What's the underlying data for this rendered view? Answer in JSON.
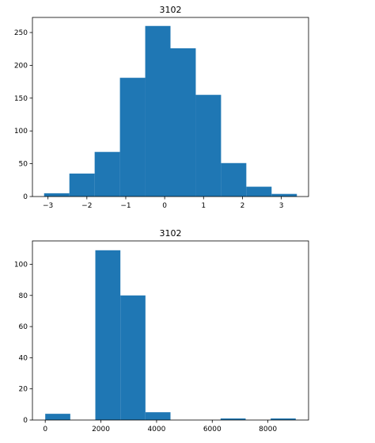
{
  "chart_data": [
    {
      "type": "bar",
      "title": "3102",
      "xlabel": "",
      "ylabel": "",
      "bin_edges": [
        -3.1,
        -2.45,
        -1.8,
        -1.15,
        -0.5,
        0.15,
        0.8,
        1.45,
        2.1,
        2.75,
        3.4
      ],
      "values": [
        5,
        35,
        68,
        181,
        260,
        226,
        155,
        51,
        15,
        4
      ],
      "xlim": [
        -3.4,
        3.7
      ],
      "ylim": [
        0,
        273
      ],
      "xticks": [
        -3,
        -2,
        -1,
        0,
        1,
        2,
        3
      ],
      "xtick_labels": [
        "−3",
        "−2",
        "−1",
        "0",
        "1",
        "2",
        "3"
      ],
      "yticks": [
        0,
        50,
        100,
        150,
        200,
        250
      ],
      "ytick_labels": [
        "0",
        "50",
        "100",
        "150",
        "200",
        "250"
      ],
      "bar_color": "#1f77b4",
      "grid": false
    },
    {
      "type": "bar",
      "title": "3102",
      "xlabel": "",
      "ylabel": "",
      "bin_edges": [
        0,
        900,
        1800,
        2700,
        3600,
        4500,
        5400,
        6300,
        7200,
        8100,
        9000
      ],
      "values": [
        4,
        0,
        109,
        80,
        5,
        0,
        0,
        1,
        0,
        1
      ],
      "xlim": [
        -460,
        9460
      ],
      "ylim": [
        0,
        115
      ],
      "xticks": [
        0,
        2000,
        4000,
        6000,
        8000
      ],
      "xtick_labels": [
        "0",
        "2000",
        "4000",
        "6000",
        "8000"
      ],
      "yticks": [
        0,
        20,
        40,
        60,
        80,
        100
      ],
      "ytick_labels": [
        "0",
        "20",
        "40",
        "60",
        "80",
        "100"
      ],
      "bar_color": "#1f77b4",
      "grid": false
    }
  ]
}
